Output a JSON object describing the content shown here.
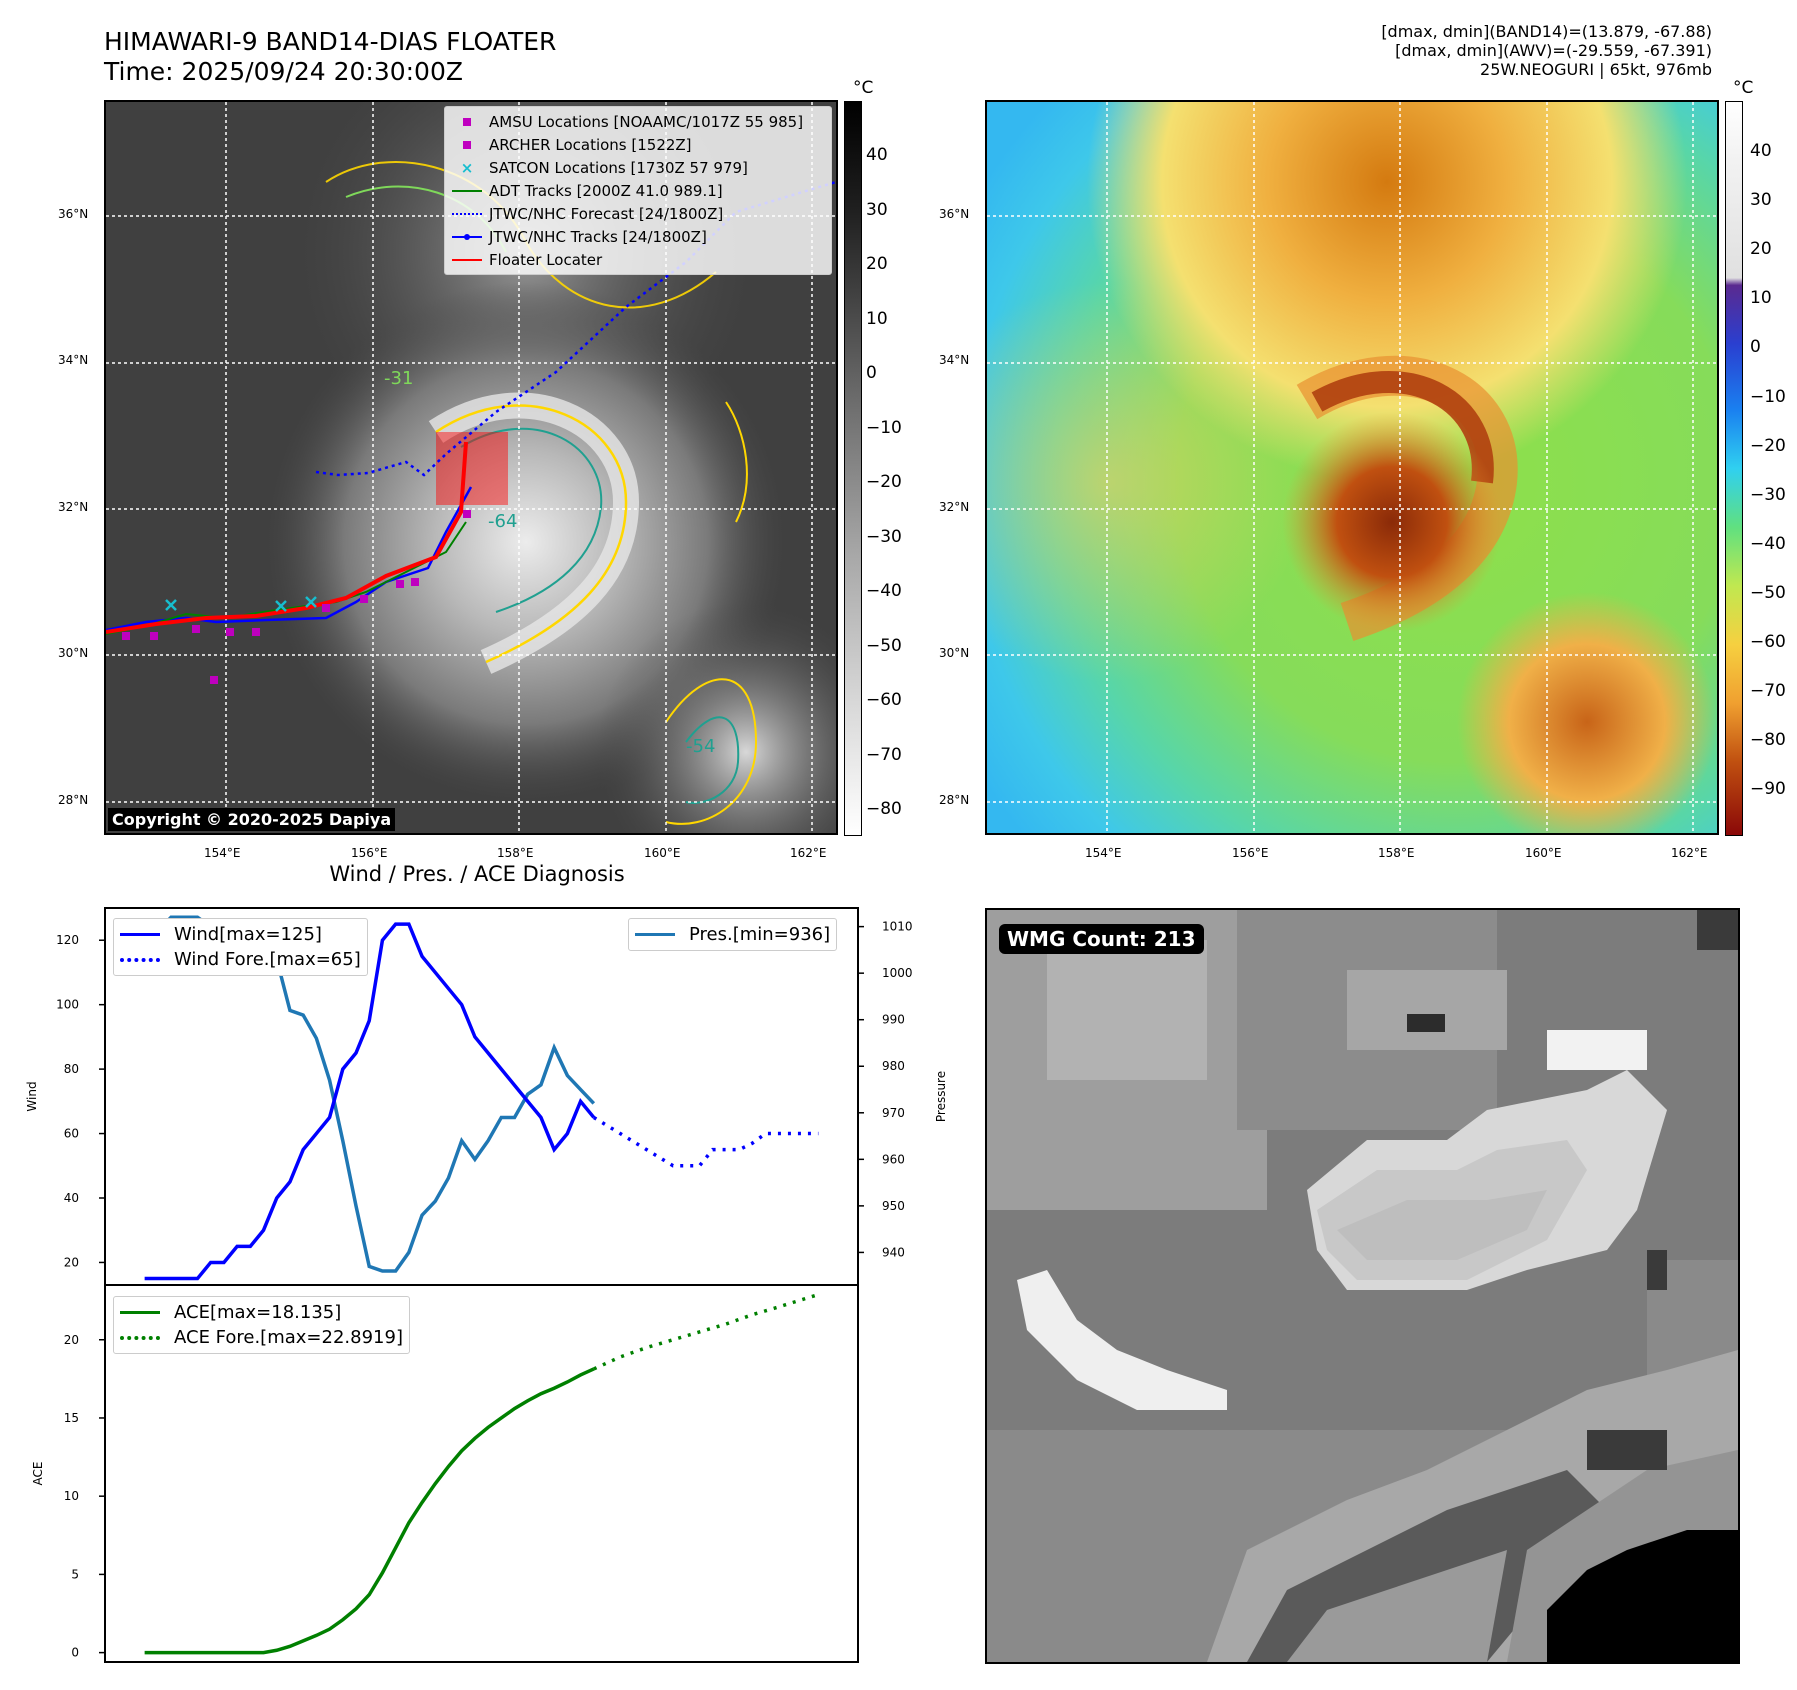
{
  "header": {
    "title": "HIMAWARI-9 BAND14-DIAS FLOATER",
    "time": "Time: 2025/09/24 20:30:00Z",
    "info_line1": "[dmax, dmin](BAND14)=(13.879, -67.88)",
    "info_line2": "[dmax, dmin](AWV)=(-29.559, -67.391)",
    "info_line3": "25W.NEOGURI | 65kt, 976mb"
  },
  "maps": {
    "lat_ticks": [
      "36°N",
      "34°N",
      "32°N",
      "30°N",
      "28°N"
    ],
    "lon_ticks": [
      "154°E",
      "156°E",
      "158°E",
      "160°E",
      "162°E"
    ],
    "copyright": "Copyright © 2020-2025 Dapiya",
    "legend": [
      {
        "label": "AMSU Locations [NOAAMC/1017Z 55 985]",
        "symbol": "square",
        "color": "#bf00bf"
      },
      {
        "label": "ARCHER Locations [1522Z]",
        "symbol": "square",
        "color": "#bf00bf"
      },
      {
        "label": "SATCON Locations [1730Z 57 979]",
        "symbol": "x",
        "color": "#17becf"
      },
      {
        "label": "ADT Tracks [2000Z 41.0 989.1]",
        "symbol": "line",
        "color": "#008000"
      },
      {
        "label": "JTWC/NHC Forecast [24/1800Z]",
        "symbol": "dotted",
        "color": "#0000ff"
      },
      {
        "label": "JTWC/NHC Tracks [24/1800Z]",
        "symbol": "line-dot",
        "color": "#0000ff"
      },
      {
        "label": "Floater Locater",
        "symbol": "line",
        "color": "#ff0000"
      }
    ],
    "contour_labels": [
      "-31",
      "-64",
      "-54"
    ]
  },
  "colorbar_gray": {
    "unit": "°C",
    "ticks": [
      "40",
      "30",
      "20",
      "10",
      "0",
      "−10",
      "−20",
      "−30",
      "−40",
      "−50",
      "−60",
      "−70",
      "−80"
    ]
  },
  "colorbar_color": {
    "unit": "°C",
    "ticks": [
      "40",
      "30",
      "20",
      "10",
      "0",
      "−10",
      "−20",
      "−30",
      "−40",
      "−50",
      "−60",
      "−70",
      "−80",
      "−90"
    ]
  },
  "wmg": {
    "label": "WMG Count: 213"
  },
  "chart_data": [
    {
      "type": "line",
      "title": "Wind / Pres. / ACE Diagnosis",
      "ylabel": "Wind",
      "ylabel_right": "Pressure",
      "ylim": [
        13,
        130
      ],
      "ylim_right": [
        933,
        1014
      ],
      "yticks": [
        20,
        40,
        60,
        80,
        100,
        120
      ],
      "yticks_right": [
        940,
        950,
        960,
        970,
        980,
        990,
        1000,
        1010
      ],
      "series": [
        {
          "name": "Wind[max=125]",
          "color": "#0000ff",
          "style": "solid",
          "x": [
            0,
            1,
            2,
            3,
            4,
            5,
            6,
            7,
            8,
            9,
            10,
            11,
            12,
            13,
            14,
            15,
            16,
            17,
            18,
            19,
            20,
            21,
            22,
            23,
            24,
            25,
            26,
            27,
            28,
            29,
            30,
            31,
            32,
            33,
            34
          ],
          "values": [
            15,
            15,
            15,
            15,
            15,
            20,
            20,
            25,
            25,
            30,
            40,
            45,
            55,
            60,
            65,
            80,
            85,
            95,
            120,
            125,
            125,
            115,
            110,
            105,
            100,
            90,
            85,
            80,
            75,
            70,
            65,
            55,
            60,
            70,
            65
          ]
        },
        {
          "name": "Wind Fore.[max=65]",
          "color": "#0000ff",
          "style": "dotted",
          "x": [
            34,
            36,
            38,
            40,
            42,
            43,
            45,
            46,
            47,
            49,
            51
          ],
          "values": [
            65,
            60,
            55,
            50,
            50,
            55,
            55,
            57,
            60,
            60,
            60
          ]
        },
        {
          "name": "Pres.[min=936]",
          "color": "#1f77b4",
          "style": "solid",
          "x": [
            0,
            1,
            2,
            3,
            4,
            5,
            6,
            7,
            8,
            9,
            10,
            11,
            12,
            13,
            14,
            15,
            16,
            17,
            18,
            19,
            20,
            21,
            22,
            23,
            24,
            25,
            26,
            27,
            28,
            29,
            30,
            31,
            32,
            33,
            34
          ],
          "values": [
            1009,
            1009,
            1012,
            1012,
            1012,
            1010,
            1009,
            1009,
            1009,
            1007,
            1003,
            992,
            991,
            986,
            977,
            964,
            950,
            937,
            936,
            936,
            940,
            948,
            951,
            956,
            964,
            960,
            964,
            969,
            969,
            974,
            976,
            984,
            978,
            975,
            972
          ]
        }
      ]
    },
    {
      "type": "line",
      "ylabel": "ACE",
      "ylim": [
        -0.6,
        23.5
      ],
      "yticks": [
        0,
        5,
        10,
        15,
        20
      ],
      "series": [
        {
          "name": "ACE[max=18.135]",
          "color": "#008000",
          "style": "solid",
          "x": [
            0,
            1,
            2,
            3,
            4,
            5,
            6,
            7,
            8,
            9,
            10,
            11,
            12,
            13,
            14,
            15,
            16,
            17,
            18,
            19,
            20,
            21,
            22,
            23,
            24,
            25,
            26,
            27,
            28,
            29,
            30,
            31,
            32,
            33,
            34
          ],
          "values": [
            0,
            0,
            0,
            0,
            0,
            0,
            0,
            0,
            0,
            0,
            0.15,
            0.4,
            0.75,
            1.1,
            1.5,
            2.1,
            2.8,
            3.7,
            5.1,
            6.7,
            8.3,
            9.6,
            10.8,
            11.9,
            12.9,
            13.7,
            14.4,
            15.0,
            15.6,
            16.1,
            16.55,
            16.9,
            17.3,
            17.75,
            18.135
          ]
        },
        {
          "name": "ACE Fore.[max=22.8919]",
          "color": "#008000",
          "style": "dotted",
          "x": [
            34,
            36,
            38,
            40,
            42,
            44,
            46,
            48,
            51
          ],
          "values": [
            18.135,
            18.9,
            19.5,
            20.0,
            20.5,
            21.0,
            21.6,
            22.1,
            22.8919
          ]
        }
      ]
    }
  ]
}
